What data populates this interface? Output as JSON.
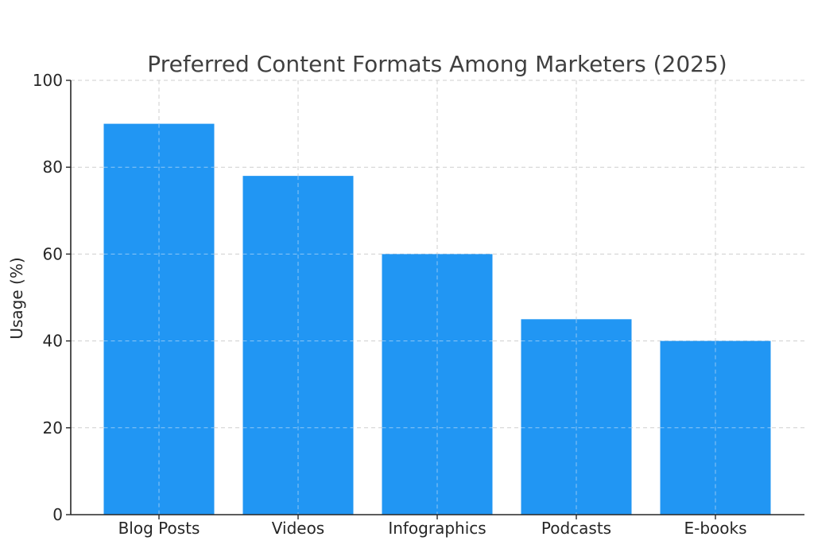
{
  "chart_data": {
    "type": "bar",
    "title": "Preferred Content Formats Among Marketers (2025)",
    "xlabel": "",
    "ylabel": "Usage (%)",
    "categories": [
      "Blog Posts",
      "Videos",
      "Infographics",
      "Podcasts",
      "E-books"
    ],
    "values": [
      90,
      78,
      60,
      45,
      40
    ],
    "ylim": [
      0,
      100
    ],
    "yticks": [
      "0",
      "20",
      "40",
      "60",
      "80",
      "100"
    ],
    "grid": true,
    "bar_color": "#2196f3"
  }
}
